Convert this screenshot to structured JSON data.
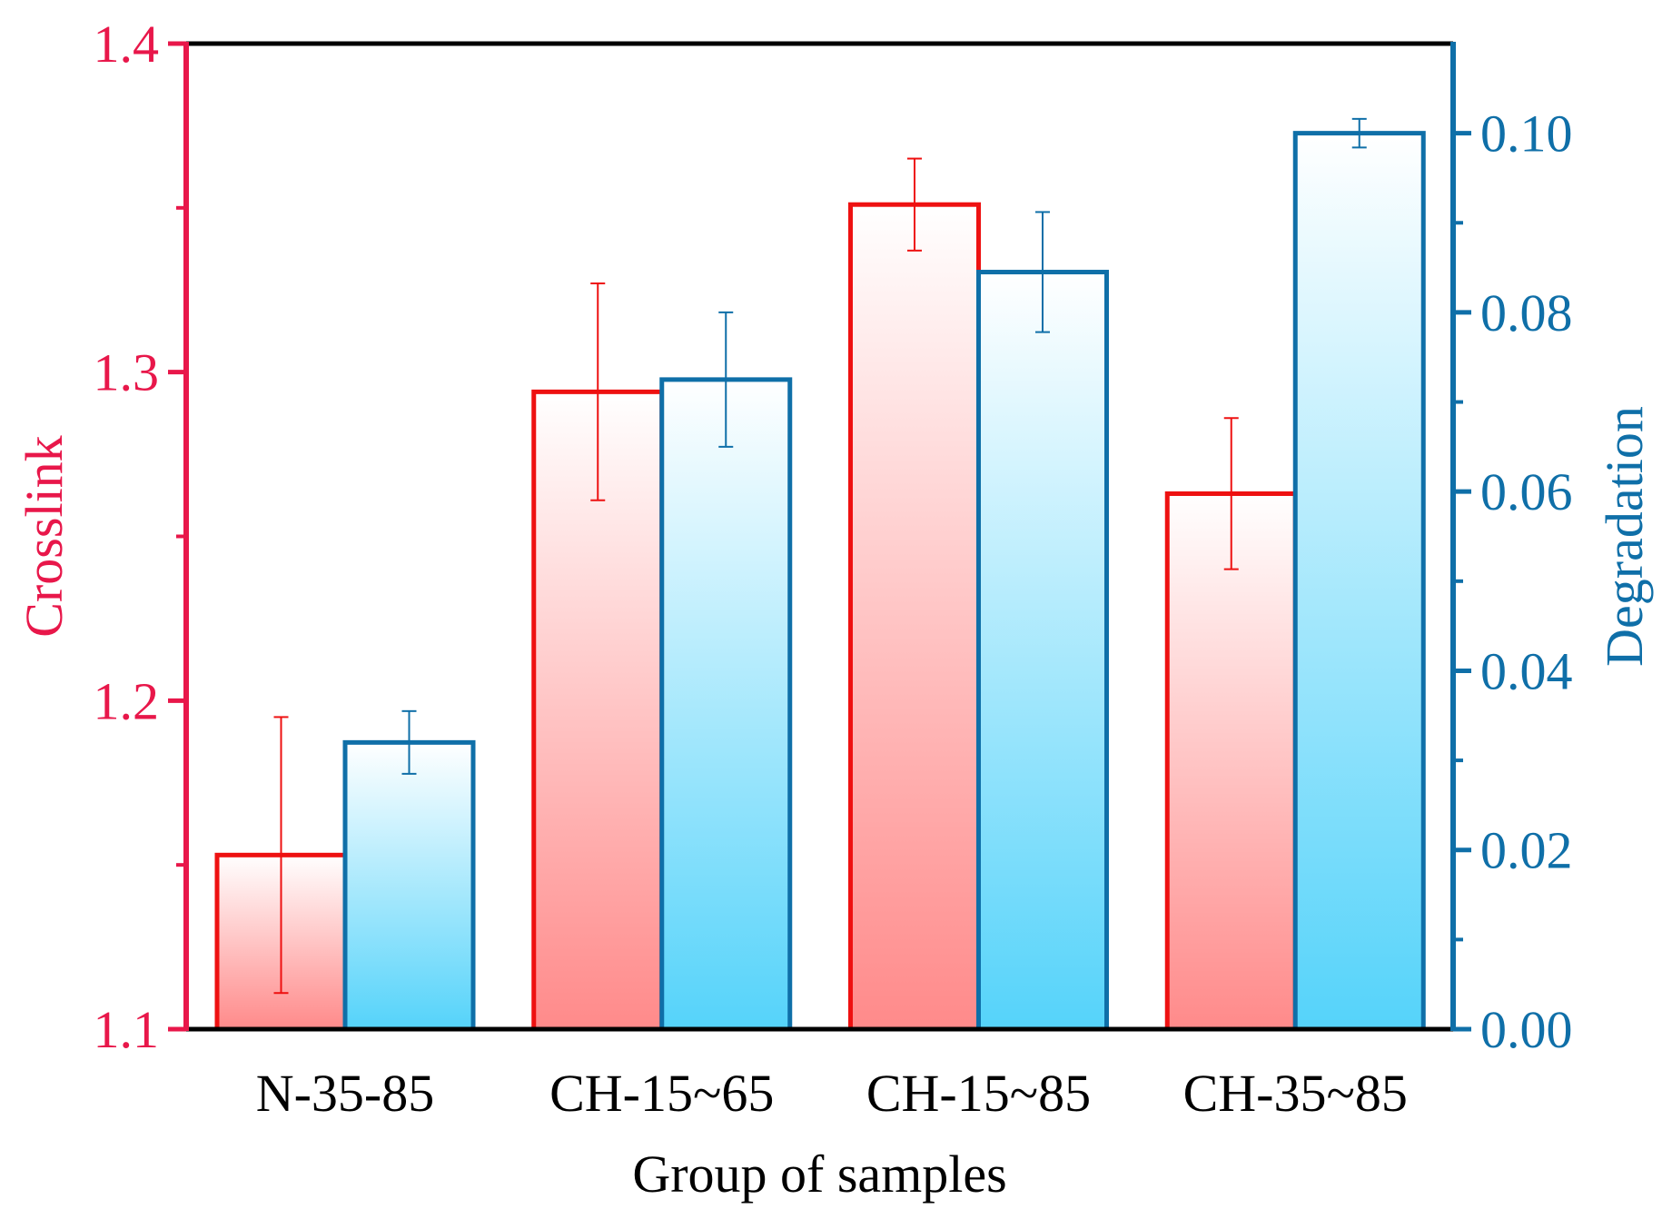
{
  "chart_data": {
    "type": "bar",
    "categories": [
      "N-35-85",
      "CH-15~65",
      "CH-15~85",
      "CH-35~85"
    ],
    "xlabel": "Group of samples",
    "grid": false,
    "y_left": {
      "label": "Crosslink",
      "lim": [
        1.1,
        1.4
      ],
      "ticks": [
        "1.1",
        "1.2",
        "1.3",
        "1.4"
      ],
      "color": "#e8174a"
    },
    "y_right": {
      "label": "Degradation",
      "lim": [
        0.0,
        0.11
      ],
      "ticks": [
        "0.00",
        "0.02",
        "0.04",
        "0.06",
        "0.08",
        "0.10"
      ],
      "color": "#0f6fa8"
    },
    "series": [
      {
        "axis": "left",
        "values": [
          1.153,
          1.294,
          1.351,
          1.263
        ],
        "errors": [
          0.042,
          0.033,
          0.014,
          0.023
        ],
        "edge_color": "#ee1111",
        "fill_top": "#ffffff",
        "fill_bottom": "#ff8a8a"
      },
      {
        "axis": "right",
        "values": [
          0.032,
          0.0725,
          0.0845,
          0.1
        ],
        "errors": [
          0.0035,
          0.0075,
          0.0067,
          0.0016
        ],
        "edge_color": "#0f6fa8",
        "fill_top": "#ffffff",
        "fill_bottom": "#55d3fa"
      }
    ]
  }
}
